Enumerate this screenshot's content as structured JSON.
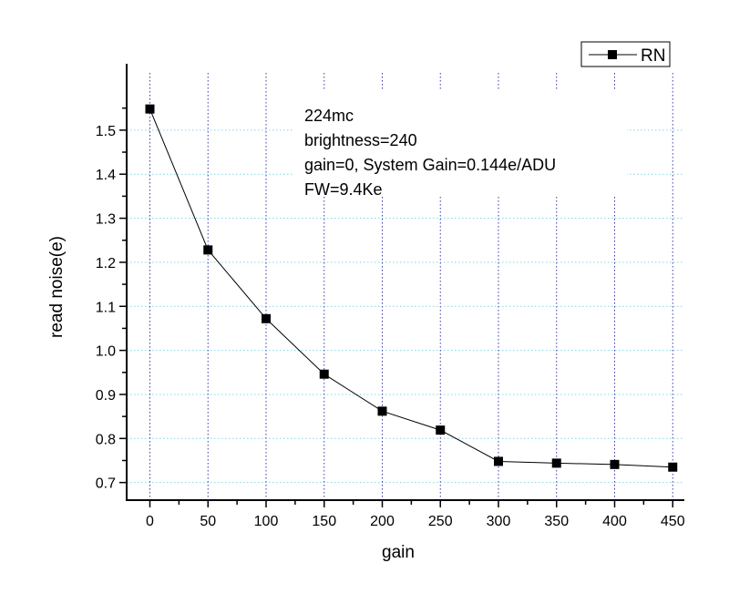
{
  "chart_data": {
    "type": "line",
    "title": "",
    "xlabel": "gain",
    "ylabel": "read noise(e)",
    "xlim": [
      -20,
      460
    ],
    "ylim": [
      0.66,
      1.63
    ],
    "xticks": [
      0,
      50,
      100,
      150,
      200,
      250,
      300,
      350,
      400,
      450
    ],
    "yticks": [
      0.7,
      0.8,
      0.9,
      1.0,
      1.1,
      1.2,
      1.3,
      1.4,
      1.5
    ],
    "grid": true,
    "legend_position": "top-right",
    "series": [
      {
        "name": "RN",
        "color": "#000000",
        "marker": "square",
        "x": [
          0,
          50,
          100,
          150,
          200,
          250,
          300,
          350,
          400,
          450
        ],
        "y": [
          1.548,
          1.228,
          1.072,
          0.946,
          0.862,
          0.819,
          0.748,
          0.744,
          0.741,
          0.735
        ]
      }
    ],
    "annotation": [
      "224mc",
      "brightness=240",
      "gain=0, System Gain=0.144e/ADU",
      "FW=9.4Ke"
    ],
    "colors": {
      "vgrid": "#3a3aa8",
      "hgrid": "#7fd8e8"
    }
  }
}
